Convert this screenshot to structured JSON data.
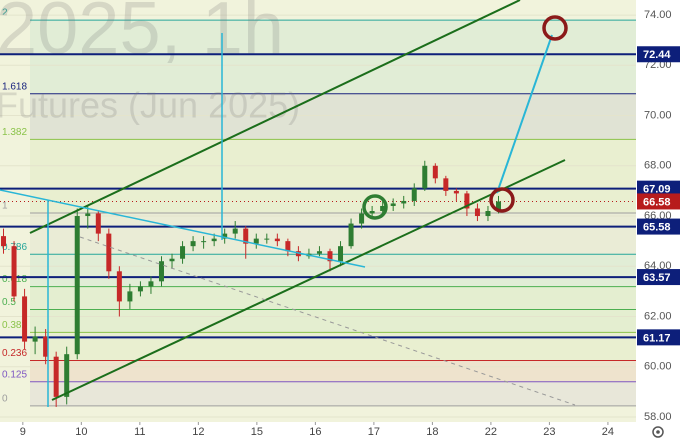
{
  "chart_data": {
    "type": "candlestick",
    "watermark": "2025, 1h",
    "watermark_subtitle": "Futures (Jun 2025)",
    "x": [
      -0.33,
      -0.15,
      0.03,
      0.21,
      0.39,
      0.57,
      0.75,
      0.93,
      1.11,
      1.29,
      1.47,
      1.65,
      1.83,
      2.01,
      2.19,
      2.37,
      2.55,
      2.73,
      2.91,
      3.09,
      3.27,
      3.45,
      3.63,
      3.81,
      3.99,
      4.17,
      4.35,
      4.53,
      4.71,
      4.89,
      5.07,
      5.25,
      5.43,
      5.61,
      5.79,
      5.97,
      6.15,
      6.33,
      6.51,
      6.69,
      6.87,
      7.05,
      7.23,
      7.41,
      7.59,
      7.77,
      7.95,
      8.13
    ],
    "ohlc": [
      [
        65.2,
        65.5,
        64.5,
        64.8
      ],
      [
        64.8,
        65.0,
        62.6,
        62.8
      ],
      [
        62.8,
        63.1,
        60.7,
        61.0
      ],
      [
        61.0,
        61.6,
        60.5,
        61.2
      ],
      [
        61.2,
        61.5,
        60.1,
        60.4
      ],
      [
        60.4,
        60.6,
        58.4,
        58.8
      ],
      [
        58.8,
        60.8,
        58.5,
        60.5
      ],
      [
        60.5,
        66.3,
        60.3,
        66.0
      ],
      [
        66.0,
        66.4,
        65.5,
        66.1
      ],
      [
        66.1,
        66.2,
        65.0,
        65.3
      ],
      [
        65.3,
        65.5,
        63.5,
        63.8
      ],
      [
        63.8,
        64.0,
        62.0,
        62.6
      ],
      [
        62.6,
        63.3,
        62.3,
        63.0
      ],
      [
        63.0,
        63.4,
        62.8,
        63.2
      ],
      [
        63.2,
        63.6,
        62.9,
        63.4
      ],
      [
        63.4,
        64.4,
        63.2,
        64.2
      ],
      [
        64.2,
        64.5,
        63.9,
        64.3
      ],
      [
        64.3,
        65.0,
        64.1,
        64.8
      ],
      [
        64.8,
        65.2,
        64.6,
        65.0
      ],
      [
        65.0,
        65.2,
        64.7,
        65.0
      ],
      [
        65.0,
        65.3,
        64.8,
        65.1
      ],
      [
        65.1,
        65.5,
        64.9,
        65.3
      ],
      [
        65.3,
        65.8,
        65.1,
        65.5
      ],
      [
        65.5,
        65.6,
        64.3,
        64.9
      ],
      [
        64.9,
        65.3,
        64.7,
        65.1
      ],
      [
        65.1,
        65.3,
        64.9,
        65.1
      ],
      [
        65.1,
        65.3,
        64.8,
        65.0
      ],
      [
        65.0,
        65.1,
        64.4,
        64.6
      ],
      [
        64.6,
        64.8,
        64.2,
        64.4
      ],
      [
        64.4,
        64.7,
        64.3,
        64.5
      ],
      [
        64.5,
        64.8,
        64.4,
        64.6
      ],
      [
        64.6,
        64.7,
        63.8,
        64.2
      ],
      [
        64.2,
        65.0,
        64.0,
        64.8
      ],
      [
        64.8,
        65.9,
        64.7,
        65.7
      ],
      [
        65.7,
        66.3,
        65.5,
        66.1
      ],
      [
        66.1,
        66.4,
        65.9,
        66.2
      ],
      [
        66.2,
        66.6,
        66.0,
        66.4
      ],
      [
        66.4,
        66.7,
        66.2,
        66.5
      ],
      [
        66.5,
        66.8,
        66.3,
        66.6
      ],
      [
        66.6,
        67.3,
        66.4,
        67.1
      ],
      [
        67.1,
        68.2,
        67.0,
        68.0
      ],
      [
        68.0,
        68.1,
        67.3,
        67.5
      ],
      [
        67.5,
        67.6,
        66.8,
        67.0
      ],
      [
        67.0,
        67.1,
        66.6,
        66.9
      ],
      [
        66.9,
        67.0,
        66.0,
        66.3
      ],
      [
        66.3,
        66.5,
        65.8,
        66.0
      ],
      [
        66.0,
        66.4,
        65.8,
        66.2
      ],
      [
        66.2,
        66.8,
        66.1,
        66.58
      ]
    ],
    "up_color": "#2e7d32",
    "down_color": "#c62828",
    "xlim": [
      -0.39,
      10.48
    ],
    "xticks": [
      {
        "value": 0,
        "label": "9"
      },
      {
        "value": 1,
        "label": "10"
      },
      {
        "value": 2,
        "label": "11"
      },
      {
        "value": 3,
        "label": "12"
      },
      {
        "value": 4,
        "label": "15"
      },
      {
        "value": 5,
        "label": "16"
      },
      {
        "value": 6,
        "label": "17"
      },
      {
        "value": 7,
        "label": "18"
      },
      {
        "value": 8,
        "label": "22"
      },
      {
        "value": 9,
        "label": "23"
      },
      {
        "value": 10,
        "label": "24"
      }
    ],
    "ylim": [
      57.8,
      74.6
    ],
    "yticks": [
      {
        "value": 74,
        "label": "74.00"
      },
      {
        "value": 72,
        "label": "72.00"
      },
      {
        "value": 70,
        "label": "70.00"
      },
      {
        "value": 68,
        "label": "68.00"
      },
      {
        "value": 66,
        "label": "66.00"
      },
      {
        "value": 64,
        "label": "64.00"
      },
      {
        "value": 62,
        "label": "62.00"
      },
      {
        "value": 60,
        "label": "60.00"
      },
      {
        "value": 58,
        "label": "58.00"
      }
    ],
    "levels": [
      72.44,
      67.09,
      65.58,
      63.57,
      61.17
    ],
    "level_color": "#0d1f7a",
    "last_price": 66.58,
    "last_color": "#b71c1c",
    "fib_levels": [
      {
        "label": "2",
        "price": 73.8,
        "color": "#26a69a"
      },
      {
        "label": "1.618",
        "price": 70.87,
        "color": "#1a237e"
      },
      {
        "label": "1.382",
        "price": 69.05,
        "color": "#8bc34a"
      },
      {
        "label": "1",
        "price": 66.12,
        "color": "#9e9e9e"
      },
      {
        "label": "0.786",
        "price": 64.48,
        "color": "#26a69a"
      },
      {
        "label": "0.618",
        "price": 63.19,
        "color": "#4caf50"
      },
      {
        "label": "0.5",
        "price": 62.28,
        "color": "#4caf50"
      },
      {
        "label": "0.382",
        "price": 61.37,
        "color": "#8bc34a"
      },
      {
        "label": "0.236",
        "price": 60.25,
        "color": "#c62828"
      },
      {
        "label": "0.125",
        "price": 59.4,
        "color": "#7e57c2"
      },
      {
        "label": "0",
        "price": 58.44,
        "color": "#9e9e9e"
      }
    ]
  }
}
